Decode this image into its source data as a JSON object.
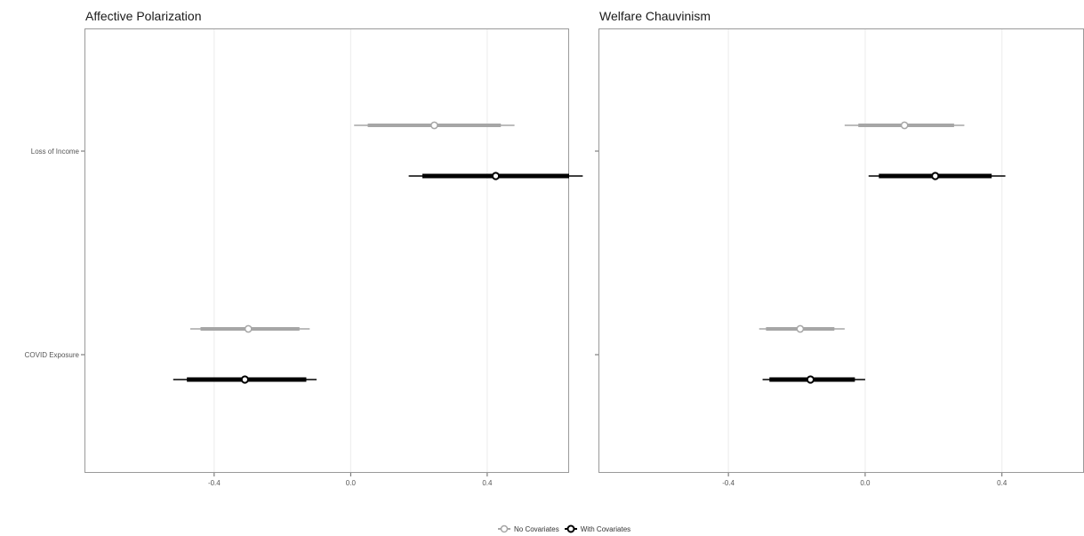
{
  "chart_data": [
    {
      "type": "scatter",
      "title": "Affective Polarization",
      "categories": [
        "Loss of Income",
        "COVID Exposure"
      ],
      "xlim": [
        -0.78,
        0.64
      ],
      "xticks": [
        -0.4,
        0.0,
        0.4
      ],
      "xtick_labels": [
        "-0.4",
        "0.0",
        "0.4"
      ],
      "grid": true,
      "series": [
        {
          "name": "No Covariates",
          "color": "#a6a6a6",
          "points": [
            {
              "category": "Loss of Income",
              "estimate": 0.245,
              "ci_inner": [
                0.05,
                0.44
              ],
              "ci_outer": [
                0.01,
                0.48
              ]
            },
            {
              "category": "COVID Exposure",
              "estimate": -0.3,
              "ci_inner": [
                -0.44,
                -0.15
              ],
              "ci_outer": [
                -0.47,
                -0.12
              ]
            }
          ]
        },
        {
          "name": "With Covariates",
          "color": "#000000",
          "points": [
            {
              "category": "Loss of Income",
              "estimate": 0.425,
              "ci_inner": [
                0.21,
                0.64
              ],
              "ci_outer": [
                0.17,
                0.68
              ]
            },
            {
              "category": "COVID Exposure",
              "estimate": -0.31,
              "ci_inner": [
                -0.48,
                -0.13
              ],
              "ci_outer": [
                -0.52,
                -0.1
              ]
            }
          ]
        }
      ]
    },
    {
      "type": "scatter",
      "title": "Welfare Chauvinism",
      "categories": [
        "Loss of Income",
        "COVID Exposure"
      ],
      "xlim": [
        -0.78,
        0.64
      ],
      "xticks": [
        -0.4,
        0.0,
        0.4
      ],
      "xtick_labels": [
        "-0.4",
        "0.0",
        "0.4"
      ],
      "grid": true,
      "series": [
        {
          "name": "No Covariates",
          "color": "#a6a6a6",
          "points": [
            {
              "category": "Loss of Income",
              "estimate": 0.115,
              "ci_inner": [
                -0.02,
                0.26
              ],
              "ci_outer": [
                -0.06,
                0.29
              ]
            },
            {
              "category": "COVID Exposure",
              "estimate": -0.19,
              "ci_inner": [
                -0.29,
                -0.09
              ],
              "ci_outer": [
                -0.31,
                -0.06
              ]
            }
          ]
        },
        {
          "name": "With Covariates",
          "color": "#000000",
          "points": [
            {
              "category": "Loss of Income",
              "estimate": 0.205,
              "ci_inner": [
                0.04,
                0.37
              ],
              "ci_outer": [
                0.01,
                0.41
              ]
            },
            {
              "category": "COVID Exposure",
              "estimate": -0.16,
              "ci_inner": [
                -0.28,
                -0.03
              ],
              "ci_outer": [
                -0.3,
                0.0
              ]
            }
          ]
        }
      ]
    }
  ],
  "ytick_labels": [
    "Loss of Income",
    "COVID Exposure"
  ],
  "legend": {
    "position": "bottom",
    "items": [
      {
        "label": "No Covariates",
        "color": "#a6a6a6"
      },
      {
        "label": "With Covariates",
        "color": "#000000"
      }
    ]
  }
}
